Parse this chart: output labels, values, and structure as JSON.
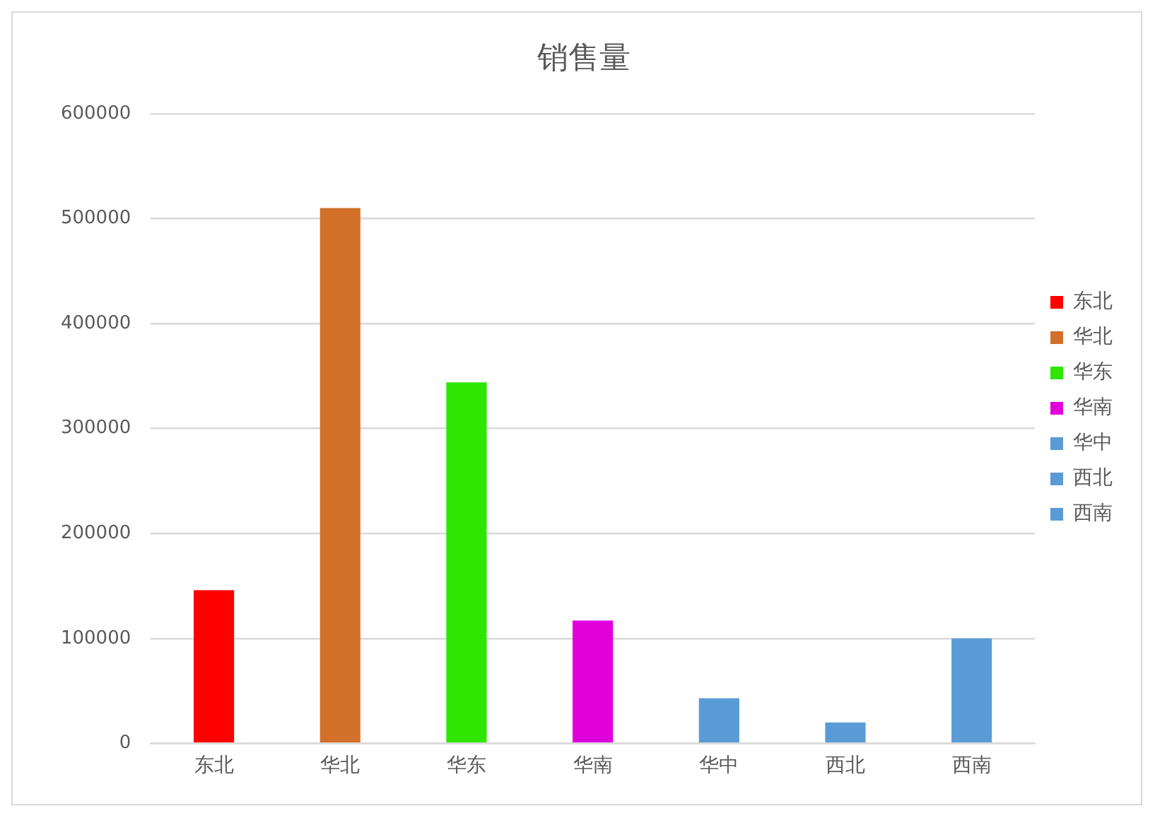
{
  "chart_data": {
    "type": "bar",
    "title": "销售量",
    "categories": [
      "东北",
      "华北",
      "华东",
      "华南",
      "华中",
      "西北",
      "西南"
    ],
    "series": [
      {
        "name": "东北",
        "color": "#ff0000",
        "values": [
          146000,
          null,
          null,
          null,
          null,
          null,
          null
        ]
      },
      {
        "name": "华北",
        "color": "#d2702a",
        "values": [
          null,
          510000,
          null,
          null,
          null,
          null,
          null
        ]
      },
      {
        "name": "华东",
        "color": "#2ee600",
        "values": [
          null,
          null,
          344000,
          null,
          null,
          null,
          null
        ]
      },
      {
        "name": "华南",
        "color": "#e000dc",
        "values": [
          null,
          null,
          null,
          117000,
          null,
          null,
          null
        ]
      },
      {
        "name": "华中",
        "color": "#5b9bd5",
        "values": [
          null,
          null,
          null,
          null,
          43000,
          null,
          null
        ]
      },
      {
        "name": "西北",
        "color": "#5b9bd5",
        "values": [
          null,
          null,
          null,
          null,
          null,
          20000,
          null
        ]
      },
      {
        "name": "西南",
        "color": "#5b9bd5",
        "values": [
          null,
          null,
          null,
          null,
          null,
          null,
          100000
        ]
      }
    ],
    "ylim": [
      0,
      600000
    ],
    "yticks": [
      0,
      100000,
      200000,
      300000,
      400000,
      500000,
      600000
    ],
    "grid": "y",
    "legend": "right"
  }
}
